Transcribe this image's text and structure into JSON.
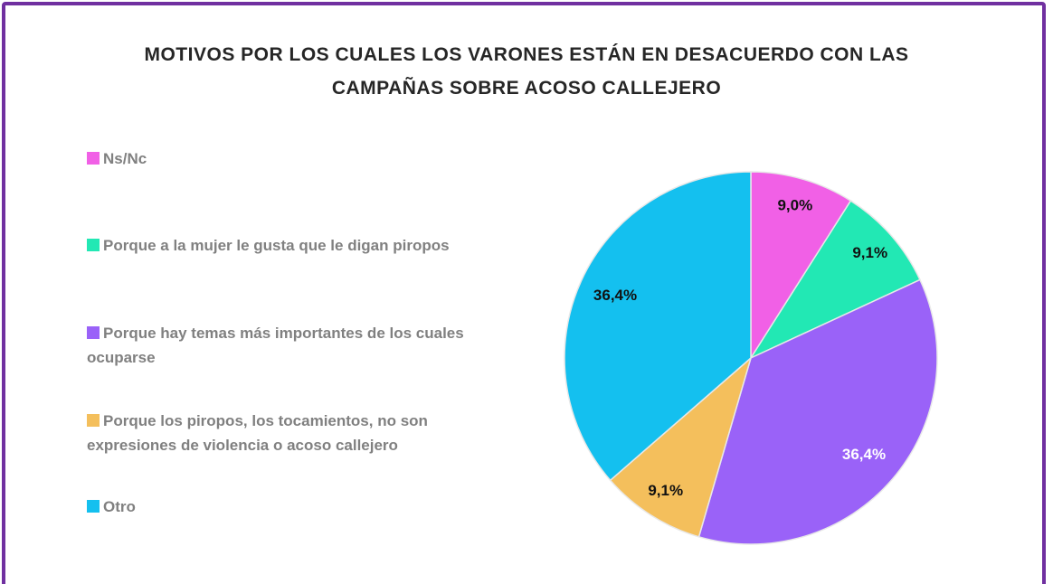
{
  "chart_data": {
    "type": "pie",
    "title": "MOTIVOS POR LOS CUALES LOS VARONES ESTÁN EN DESACUERDO CON LAS CAMPAÑAS SOBRE ACOSO CALLEJERO",
    "categories": [
      "Ns/Nc",
      "Porque a la mujer le gusta que le digan piropos",
      "Porque hay temas más importantes de los cuales ocuparse",
      "Porque los piropos, los tocamientos, no son expresiones de violencia o acoso callejero",
      "Otro"
    ],
    "values": [
      9.0,
      9.1,
      36.4,
      9.1,
      36.4
    ],
    "value_labels": [
      "9,0%",
      "9,1%",
      "36,4%",
      "9,1%",
      "36,4%"
    ],
    "colors": [
      "#f160e6",
      "#22e8b4",
      "#9a62f8",
      "#f4bf5c",
      "#14c0ef"
    ],
    "label_colors": [
      "#111111",
      "#111111",
      "#ffffff",
      "#111111",
      "#111111"
    ],
    "legend": "left"
  }
}
